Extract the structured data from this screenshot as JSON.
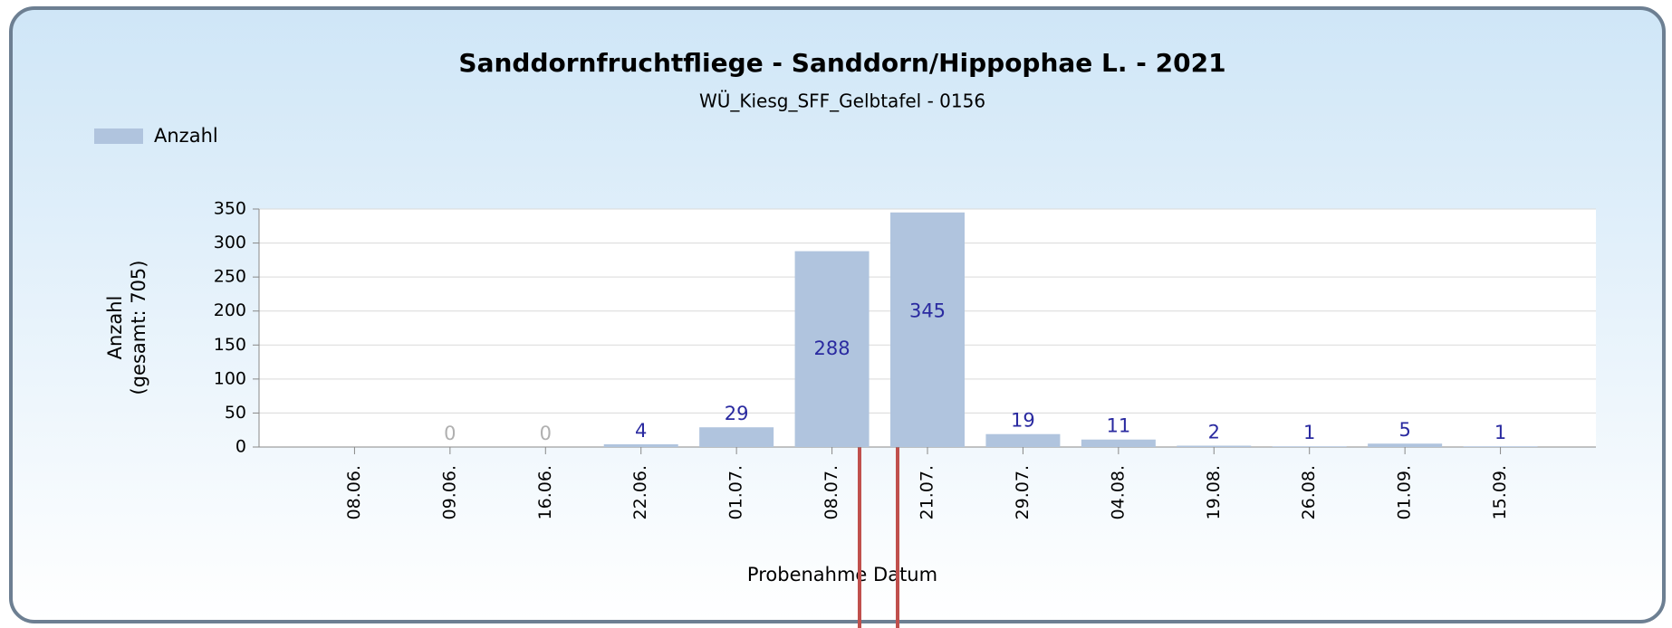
{
  "chart_data": {
    "type": "bar",
    "title": "Sanddornfruchtfliege - Sanddorn/Hippophae L. - 2021",
    "subtitle": "WÜ_Kiesg_SFF_Gelbtafel - 0156",
    "y_label": [
      "Anzahl",
      "(gesamt: 705)"
    ],
    "x_label": "Probenahme Datum",
    "categories": [
      "08.06.",
      "09.06.",
      "16.06.",
      "22.06.",
      "01.07.",
      "08.07.",
      "21.07.",
      "29.07.",
      "04.08.",
      "19.08.",
      "26.08.",
      "01.09.",
      "15.09."
    ],
    "series": [
      {
        "name": "Anzahl",
        "color": "#b0c4de",
        "values": [
          null,
          0,
          0,
          4,
          29,
          288,
          345,
          19,
          11,
          2,
          1,
          5,
          1
        ]
      }
    ],
    "ylim": [
      0,
      350
    ],
    "yticks": [
      0,
      50,
      100,
      150,
      200,
      250,
      300,
      350
    ],
    "grid": true,
    "legend": "top-left"
  }
}
